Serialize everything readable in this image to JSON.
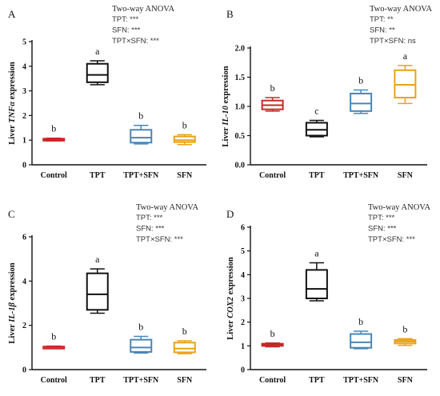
{
  "chart_data": [
    {
      "type": "box",
      "panel": "A",
      "ylabel_prefix": "Liver ",
      "ylabel_italic": "TNFα",
      "ylabel_suffix": " expression",
      "ylim": [
        0,
        5
      ],
      "yticks": [
        "0",
        "1",
        "2",
        "3",
        "4",
        "5"
      ],
      "categories": [
        "Control",
        "TPT",
        "TPT+SFN",
        "SFN"
      ],
      "colors": [
        "#c62828",
        "#111111",
        "#4a86b8",
        "#e8a317"
      ],
      "boxes": [
        {
          "min": 0.97,
          "q1": 1.0,
          "median": 1.02,
          "q3": 1.06,
          "max": 1.08
        },
        {
          "min": 3.25,
          "q1": 3.35,
          "median": 3.65,
          "q3": 4.1,
          "max": 4.22
        },
        {
          "min": 0.85,
          "q1": 0.9,
          "median": 1.1,
          "q3": 1.42,
          "max": 1.6
        },
        {
          "min": 0.82,
          "q1": 0.92,
          "median": 1.0,
          "q3": 1.15,
          "max": 1.22
        }
      ],
      "letters": [
        "b",
        "a",
        "b",
        "b"
      ],
      "anova": {
        "title": "Two-way ANOVA",
        "lines": [
          "TPT: ***",
          "SFN: ***",
          "TPT×SFN: ***"
        ]
      }
    },
    {
      "type": "box",
      "panel": "B",
      "ylabel_prefix": "Liver ",
      "ylabel_italic": "IL-10",
      "ylabel_suffix": " expression",
      "ylim": [
        0,
        2
      ],
      "yticks": [
        "0.0",
        "0.5",
        "1.0",
        "1.5",
        "2.0"
      ],
      "categories": [
        "Control",
        "TPT",
        "TPT+SFN",
        "SFN"
      ],
      "colors": [
        "#c62828",
        "#111111",
        "#4a86b8",
        "#e8a317"
      ],
      "boxes": [
        {
          "min": 0.92,
          "q1": 0.95,
          "median": 1.02,
          "q3": 1.1,
          "max": 1.15
        },
        {
          "min": 0.48,
          "q1": 0.5,
          "median": 0.6,
          "q3": 0.72,
          "max": 0.76
        },
        {
          "min": 0.88,
          "q1": 0.92,
          "median": 1.05,
          "q3": 1.22,
          "max": 1.28
        },
        {
          "min": 1.05,
          "q1": 1.15,
          "median": 1.37,
          "q3": 1.62,
          "max": 1.7
        }
      ],
      "letters": [
        "b",
        "c",
        "b",
        "a"
      ],
      "anova": {
        "title": "Two-way ANOVA",
        "lines": [
          "TPT: **",
          "SFN: **",
          "TPT×SFN: ns"
        ]
      }
    },
    {
      "type": "box",
      "panel": "C",
      "ylabel_prefix": "Liver ",
      "ylabel_italic": "IL-1β",
      "ylabel_suffix": " expression",
      "ylim": [
        0,
        6
      ],
      "yticks": [
        "0",
        "2",
        "4",
        "6"
      ],
      "categories": [
        "Control",
        "TPT",
        "TPT+SFN",
        "SFN"
      ],
      "colors": [
        "#c62828",
        "#111111",
        "#4a86b8",
        "#e8a317"
      ],
      "boxes": [
        {
          "min": 0.98,
          "q1": 1.0,
          "median": 1.02,
          "q3": 1.04,
          "max": 1.06
        },
        {
          "min": 2.55,
          "q1": 2.7,
          "median": 3.4,
          "q3": 4.35,
          "max": 4.55
        },
        {
          "min": 0.75,
          "q1": 0.8,
          "median": 1.0,
          "q3": 1.35,
          "max": 1.5
        },
        {
          "min": 0.72,
          "q1": 0.78,
          "median": 0.95,
          "q3": 1.22,
          "max": 1.3
        }
      ],
      "letters": [
        "b",
        "a",
        "b",
        "b"
      ],
      "anova": {
        "title": "Two-way ANOVA",
        "lines": [
          "TPT: ***",
          "SFN: ***",
          "TPT×SFN: ***"
        ]
      }
    },
    {
      "type": "box",
      "panel": "D",
      "ylabel_prefix": "Liver ",
      "ylabel_italic": "COX2",
      "ylabel_suffix": " expression",
      "ylim": [
        0,
        6
      ],
      "yticks": [
        "0",
        "1",
        "2",
        "3",
        "4",
        "5",
        "6"
      ],
      "categories": [
        "Control",
        "TPT",
        "TPT+SFN",
        "SFN"
      ],
      "colors": [
        "#c62828",
        "#111111",
        "#4a86b8",
        "#e8a317"
      ],
      "boxes": [
        {
          "min": 0.96,
          "q1": 1.0,
          "median": 1.03,
          "q3": 1.09,
          "max": 1.12
        },
        {
          "min": 2.9,
          "q1": 3.0,
          "median": 3.4,
          "q3": 4.2,
          "max": 4.5
        },
        {
          "min": 0.88,
          "q1": 0.92,
          "median": 1.15,
          "q3": 1.5,
          "max": 1.62
        },
        {
          "min": 1.02,
          "q1": 1.1,
          "median": 1.18,
          "q3": 1.25,
          "max": 1.3
        }
      ],
      "letters": [
        "b",
        "a",
        "b",
        "b"
      ],
      "anova": {
        "title": "Two-way ANOVA",
        "lines": [
          "TPT: ***",
          "SFN: ***",
          "TPT×SFN: ***"
        ]
      }
    }
  ]
}
